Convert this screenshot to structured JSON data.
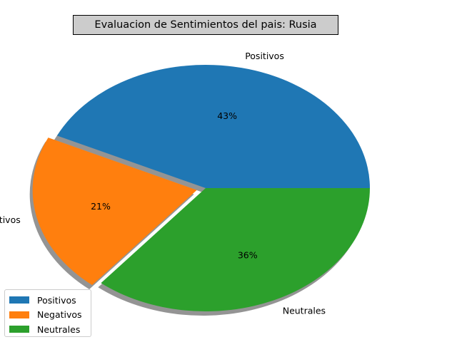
{
  "chart_data": {
    "type": "pie",
    "title": "Evaluacion de Sentimientos del pais: Rusia",
    "labels": [
      "Positivos",
      "Negativos",
      "Neutrales"
    ],
    "values": [
      43,
      21,
      36
    ],
    "percent_labels": [
      "43%",
      "21%",
      "36%"
    ],
    "colors": [
      "#1f77b4",
      "#ff7f0e",
      "#2ca02c"
    ],
    "explode": [
      0,
      0.1,
      0
    ],
    "shadow": true,
    "start_angle_deg": 0,
    "legend": {
      "placement": "lower-left",
      "items": [
        {
          "label": "Positivos",
          "color": "#1f77b4"
        },
        {
          "label": "Negativos",
          "color": "#ff7f0e"
        },
        {
          "label": "Neutrales",
          "color": "#2ca02c"
        }
      ]
    }
  }
}
